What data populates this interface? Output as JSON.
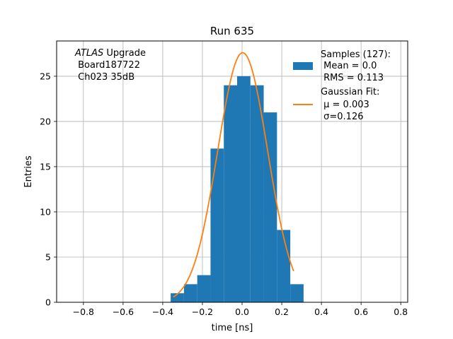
{
  "chart_data": {
    "type": "bar",
    "title": "Run 635",
    "xlabel": "time [ns]",
    "ylabel": "Entries",
    "xlim": [
      -0.935,
      0.835
    ],
    "ylim": [
      0,
      28.9
    ],
    "xticks": [
      -0.8,
      -0.6,
      -0.4,
      -0.2,
      0.0,
      0.2,
      0.4,
      0.6,
      0.8
    ],
    "xtick_labels": [
      "−0.8",
      "−0.6",
      "−0.4",
      "−0.2",
      "0.0",
      "0.2",
      "0.4",
      "0.6",
      "0.8"
    ],
    "yticks": [
      0,
      5,
      10,
      15,
      20,
      25
    ],
    "ytick_labels": [
      "0",
      "5",
      "10",
      "15",
      "20",
      "25"
    ],
    "grid": true,
    "histogram": {
      "name": "Samples (127):",
      "color": "#1f77b4",
      "bin_edges": [
        -0.36,
        -0.293,
        -0.226,
        -0.159,
        -0.092,
        -0.025,
        0.042,
        0.109,
        0.176,
        0.243,
        0.31
      ],
      "counts": [
        1,
        2,
        3,
        17,
        24,
        25,
        24,
        21,
        8,
        2
      ]
    },
    "fit": {
      "name": "Gaussian Fit:",
      "color": "#ff7f0e",
      "mu": 0.003,
      "sigma": 0.126,
      "amplitude": 27.6,
      "x_range": [
        -0.347,
        0.26
      ]
    },
    "annotation_lines": [
      "ATLAS",
      " Upgrade",
      " Board187722",
      " Ch023 35dB"
    ],
    "legend": {
      "position": "top-right",
      "samples_lines": [
        "Samples (127):",
        " Mean = 0.0",
        " RMS = 0.113"
      ],
      "fit_lines": [
        "Gaussian Fit:",
        " μ = 0.003",
        " σ=0.126"
      ]
    }
  }
}
